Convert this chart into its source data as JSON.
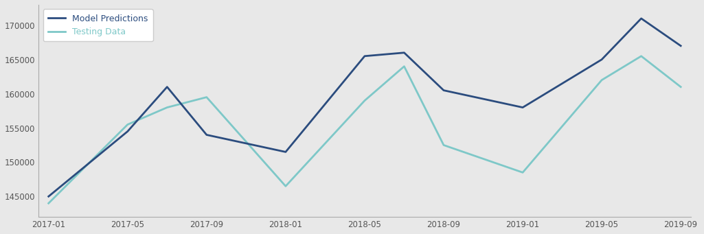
{
  "model_predictions": [
    145000,
    154500,
    161000,
    154000,
    151500,
    165500,
    166000,
    160500,
    158000,
    165000,
    171000,
    167000
  ],
  "testing_data": [
    144000,
    155500,
    158000,
    159500,
    146500,
    159000,
    164000,
    152500,
    148500,
    162000,
    165500,
    161000
  ],
  "x_positions": [
    0,
    4,
    6,
    8,
    12,
    16,
    18,
    20,
    24,
    28,
    30,
    32
  ],
  "pred_color": "#2b4c7e",
  "test_color": "#7ec8c8",
  "background_color": "#e8e8e8",
  "pred_label": "Model Predictions",
  "test_label": "Testing Data",
  "ylim": [
    142000,
    173000
  ],
  "yticks": [
    145000,
    150000,
    155000,
    160000,
    165000,
    170000
  ],
  "xtick_labels": [
    "2017-01",
    "2017-05",
    "2017-09",
    "2018-01",
    "2018-05",
    "2018-09",
    "2019-01",
    "2019-05",
    "2019-09"
  ],
  "xtick_positions": [
    0,
    4,
    8,
    12,
    16,
    20,
    24,
    28,
    32
  ],
  "line_width": 2.0,
  "legend_fontsize": 9,
  "tick_fontsize": 8.5
}
